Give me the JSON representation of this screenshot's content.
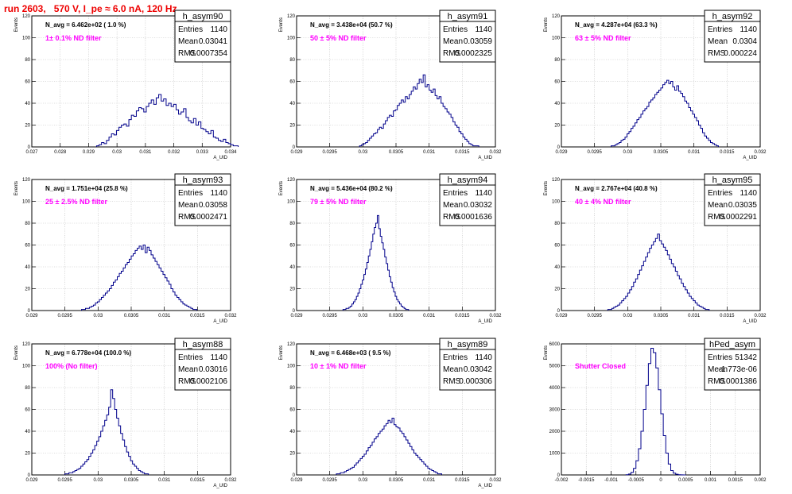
{
  "page": {
    "title": "run 2603,   570 V, I_pe ≈ 6.0 nA, 120 Hz"
  },
  "colors": {
    "title": "#ee0000",
    "histogram": "#00008b",
    "annotation": "#ff00ff",
    "grid": "#c0c0c0"
  },
  "chart_data": [
    {
      "type": "histogram",
      "name": "h_asym90",
      "stats": {
        "entries": "1140",
        "mean": "0.03041",
        "rms": "0.0007354"
      },
      "navg": "N_avg = 6.462e+02 ( 1.0 %)",
      "note": "1± 0.1% ND filter",
      "xlabel": "A_UID",
      "ylabel": "Events",
      "xlim": [
        0.027,
        0.034
      ],
      "ylim": [
        0,
        120
      ],
      "xticks": [
        "0.027",
        "0.028",
        "0.029",
        "0.03",
        "0.031",
        "0.032",
        "0.033",
        "0.034"
      ],
      "yticks": [
        "0",
        "20",
        "40",
        "60",
        "80",
        "100",
        "120"
      ],
      "x_start": 0.02928,
      "bin_width": 8.75e-05,
      "values": [
        1,
        2,
        4,
        3,
        6,
        9,
        12,
        11,
        15,
        18,
        20,
        21,
        19,
        25,
        29,
        28,
        33,
        36,
        35,
        32,
        37,
        40,
        43,
        39,
        45,
        48,
        42,
        44,
        38,
        40,
        37,
        39,
        34,
        30,
        32,
        35,
        27,
        24,
        22,
        26,
        20,
        23,
        17,
        16,
        14,
        12,
        15,
        9,
        8,
        6,
        5,
        7,
        4,
        3,
        2,
        1,
        1
      ]
    },
    {
      "type": "histogram",
      "name": "h_asym91",
      "stats": {
        "entries": "1140",
        "mean": "0.03059",
        "rms": "0.0002325"
      },
      "navg": "N_avg = 3.438e+04 (50.7 %)",
      "note": "50 ± 5% ND filter",
      "xlabel": "A_UID",
      "ylabel": "Events",
      "xlim": [
        0.029,
        0.032
      ],
      "ylim": [
        0,
        120
      ],
      "xticks": [
        "0.029",
        "0.0295",
        "0.03",
        "0.0305",
        "0.031",
        "0.0315",
        "0.032"
      ],
      "yticks": [
        "0",
        "20",
        "40",
        "60",
        "80",
        "100",
        "120"
      ],
      "x_start": 0.02995,
      "bin_width": 3e-05,
      "values": [
        1,
        2,
        3,
        4,
        6,
        8,
        10,
        12,
        13,
        16,
        18,
        17,
        21,
        24,
        27,
        29,
        28,
        33,
        34,
        38,
        40,
        43,
        41,
        46,
        44,
        48,
        51,
        55,
        53,
        58,
        62,
        59,
        66,
        55,
        57,
        52,
        50,
        53,
        47,
        44,
        46,
        40,
        37,
        35,
        32,
        30,
        27,
        23,
        20,
        18,
        14,
        12,
        9,
        7,
        5,
        3,
        2,
        1,
        1,
        1
      ]
    },
    {
      "type": "histogram",
      "name": "h_asym92",
      "stats": {
        "entries": "1140",
        "mean": "0.0304",
        "rms": "0.000224"
      },
      "navg": "N_avg = 4.287e+04 (63.3 %)",
      "note": "63 ± 5% ND filter",
      "xlabel": "A_UID",
      "ylabel": "Events",
      "xlim": [
        0.029,
        0.032
      ],
      "ylim": [
        0,
        120
      ],
      "xticks": [
        "0.029",
        "0.0295",
        "0.03",
        "0.0305",
        "0.031",
        "0.0315",
        "0.032"
      ],
      "yticks": [
        "0",
        "20",
        "40",
        "60",
        "80",
        "100",
        "120"
      ],
      "x_start": 0.02975,
      "bin_width": 3e-05,
      "values": [
        1,
        1,
        2,
        3,
        4,
        6,
        7,
        9,
        12,
        14,
        17,
        19,
        22,
        25,
        27,
        30,
        33,
        35,
        37,
        41,
        43,
        45,
        48,
        50,
        52,
        54,
        57,
        59,
        61,
        58,
        60,
        55,
        52,
        56,
        51,
        49,
        46,
        42,
        40,
        36,
        33,
        30,
        27,
        24,
        20,
        17,
        13,
        10,
        8,
        6,
        4,
        3,
        2,
        1
      ]
    },
    {
      "type": "histogram",
      "name": "h_asym93",
      "stats": {
        "entries": "1140",
        "mean": "0.03058",
        "rms": "0.0002471"
      },
      "navg": "N_avg = 1.751e+04 (25.8 %)",
      "note": "25 ± 2.5% ND filter",
      "xlabel": "A_UID",
      "ylabel": "Events",
      "xlim": [
        0.029,
        0.032
      ],
      "ylim": [
        0,
        120
      ],
      "xticks": [
        "0.029",
        "0.0295",
        "0.03",
        "0.0305",
        "0.031",
        "0.0315",
        "0.032"
      ],
      "yticks": [
        "0",
        "20",
        "40",
        "60",
        "80",
        "100",
        "120"
      ],
      "x_start": 0.02975,
      "bin_width": 3e-05,
      "values": [
        1,
        1,
        2,
        2,
        3,
        4,
        5,
        7,
        8,
        10,
        12,
        14,
        16,
        18,
        20,
        23,
        26,
        28,
        31,
        34,
        36,
        39,
        42,
        44,
        47,
        50,
        52,
        55,
        57,
        59,
        56,
        60,
        53,
        58,
        55,
        51,
        48,
        45,
        42,
        39,
        36,
        33,
        30,
        27,
        24,
        20,
        17,
        14,
        12,
        10,
        8,
        6,
        5,
        4,
        3,
        2,
        1,
        1
      ]
    },
    {
      "type": "histogram",
      "name": "h_asym94",
      "stats": {
        "entries": "1140",
        "mean": "0.03032",
        "rms": "0.0001636"
      },
      "navg": "N_avg = 5.436e+04 (80.2 %)",
      "note": "79 ± 5% ND filter",
      "xlabel": "A_UID",
      "ylabel": "Events",
      "xlim": [
        0.029,
        0.032
      ],
      "ylim": [
        0,
        120
      ],
      "xticks": [
        "0.029",
        "0.0295",
        "0.03",
        "0.0305",
        "0.031",
        "0.0315",
        "0.032"
      ],
      "yticks": [
        "0",
        "20",
        "40",
        "60",
        "80",
        "100",
        "120"
      ],
      "x_start": 0.0297,
      "bin_width": 2.25e-05,
      "values": [
        1,
        1,
        2,
        2,
        3,
        4,
        6,
        8,
        10,
        13,
        16,
        20,
        24,
        28,
        33,
        38,
        44,
        50,
        56,
        63,
        70,
        76,
        80,
        87,
        75,
        68,
        62,
        56,
        49,
        43,
        37,
        31,
        26,
        21,
        17,
        13,
        10,
        8,
        6,
        4,
        3,
        2,
        1,
        1
      ]
    },
    {
      "type": "histogram",
      "name": "h_asym95",
      "stats": {
        "entries": "1140",
        "mean": "0.03035",
        "rms": "0.0002291"
      },
      "navg": "N_avg = 2.767e+04 (40.8 %)",
      "note": "40 ± 4% ND filter",
      "xlabel": "A_UID",
      "ylabel": "Events",
      "xlim": [
        0.029,
        0.032
      ],
      "ylim": [
        0,
        120
      ],
      "xticks": [
        "0.029",
        "0.0295",
        "0.03",
        "0.0305",
        "0.031",
        "0.0315",
        "0.032"
      ],
      "yticks": [
        "0",
        "20",
        "40",
        "60",
        "80",
        "100",
        "120"
      ],
      "x_start": 0.0297,
      "bin_width": 3e-05,
      "values": [
        1,
        1,
        2,
        3,
        4,
        5,
        7,
        9,
        11,
        13,
        16,
        19,
        22,
        26,
        29,
        33,
        37,
        41,
        45,
        49,
        53,
        57,
        60,
        63,
        66,
        70,
        64,
        61,
        58,
        55,
        51,
        47,
        43,
        40,
        36,
        32,
        29,
        25,
        22,
        19,
        16,
        13,
        11,
        9,
        7,
        5,
        4,
        3,
        2,
        1,
        1
      ]
    },
    {
      "type": "histogram",
      "name": "h_asym88",
      "stats": {
        "entries": "1140",
        "mean": "0.03016",
        "rms": "0.0002106"
      },
      "navg": "N_avg = 6.778e+04 (100.0 %)",
      "note": "100% (No filter)",
      "xlabel": "A_UID",
      "ylabel": "Events",
      "xlim": [
        0.029,
        0.032
      ],
      "ylim": [
        0,
        120
      ],
      "xticks": [
        "0.029",
        "0.0295",
        "0.03",
        "0.0305",
        "0.031",
        "0.0315",
        "0.032"
      ],
      "yticks": [
        "0",
        "20",
        "40",
        "60",
        "80",
        "100",
        "120"
      ],
      "x_start": 0.0295,
      "bin_width": 3e-05,
      "values": [
        1,
        1,
        2,
        2,
        3,
        4,
        5,
        6,
        8,
        10,
        12,
        14,
        17,
        20,
        23,
        27,
        31,
        35,
        40,
        45,
        50,
        55,
        62,
        78,
        70,
        60,
        52,
        45,
        38,
        32,
        26,
        21,
        17,
        13,
        10,
        8,
        6,
        4,
        3,
        2,
        1,
        1
      ]
    },
    {
      "type": "histogram",
      "name": "h_asym89",
      "stats": {
        "entries": "1140",
        "mean": "0.03042",
        "rms": "0.000306"
      },
      "navg": "N_avg = 6.468e+03 ( 9.5 %)",
      "note": "10 ± 1% ND filter",
      "xlabel": "A_UID",
      "ylabel": "Events",
      "xlim": [
        0.029,
        0.032
      ],
      "ylim": [
        0,
        120
      ],
      "xticks": [
        "0.029",
        "0.0295",
        "0.03",
        "0.0305",
        "0.031",
        "0.0315",
        "0.032"
      ],
      "yticks": [
        "0",
        "20",
        "40",
        "60",
        "80",
        "100",
        "120"
      ],
      "x_start": 0.0296,
      "bin_width": 3e-05,
      "values": [
        1,
        1,
        2,
        2,
        3,
        4,
        5,
        6,
        7,
        9,
        11,
        13,
        15,
        17,
        19,
        22,
        25,
        27,
        30,
        33,
        35,
        38,
        40,
        42,
        45,
        47,
        50,
        48,
        52,
        46,
        44,
        43,
        40,
        38,
        35,
        32,
        29,
        26,
        23,
        20,
        18,
        16,
        14,
        12,
        10,
        8,
        6,
        5,
        4,
        3,
        2,
        1,
        1
      ]
    },
    {
      "type": "histogram",
      "name": "hPed_asym",
      "stats": {
        "entries": "51342",
        "mean": "-1.773e-06",
        "rms": "0.0001386"
      },
      "navg": "",
      "note": "Shutter Closed",
      "xlabel": "",
      "ylabel": "Events",
      "xlim": [
        -0.002,
        0.002
      ],
      "ylim": [
        0,
        6000
      ],
      "xticks": [
        "-0.002",
        "-0.0015",
        "-0.001",
        "-0.0005",
        "0",
        "0.0005",
        "0.001",
        "0.0015",
        "0.002"
      ],
      "yticks": [
        "0",
        "1000",
        "2000",
        "3000",
        "4000",
        "5000",
        "6000"
      ],
      "x_start": -0.0007,
      "bin_width": 5e-05,
      "values": [
        10,
        40,
        120,
        300,
        650,
        1200,
        2000,
        3000,
        4100,
        5100,
        5800,
        5600,
        4900,
        3900,
        2800,
        1800,
        1000,
        500,
        200,
        80,
        30,
        10,
        5,
        2
      ]
    }
  ]
}
